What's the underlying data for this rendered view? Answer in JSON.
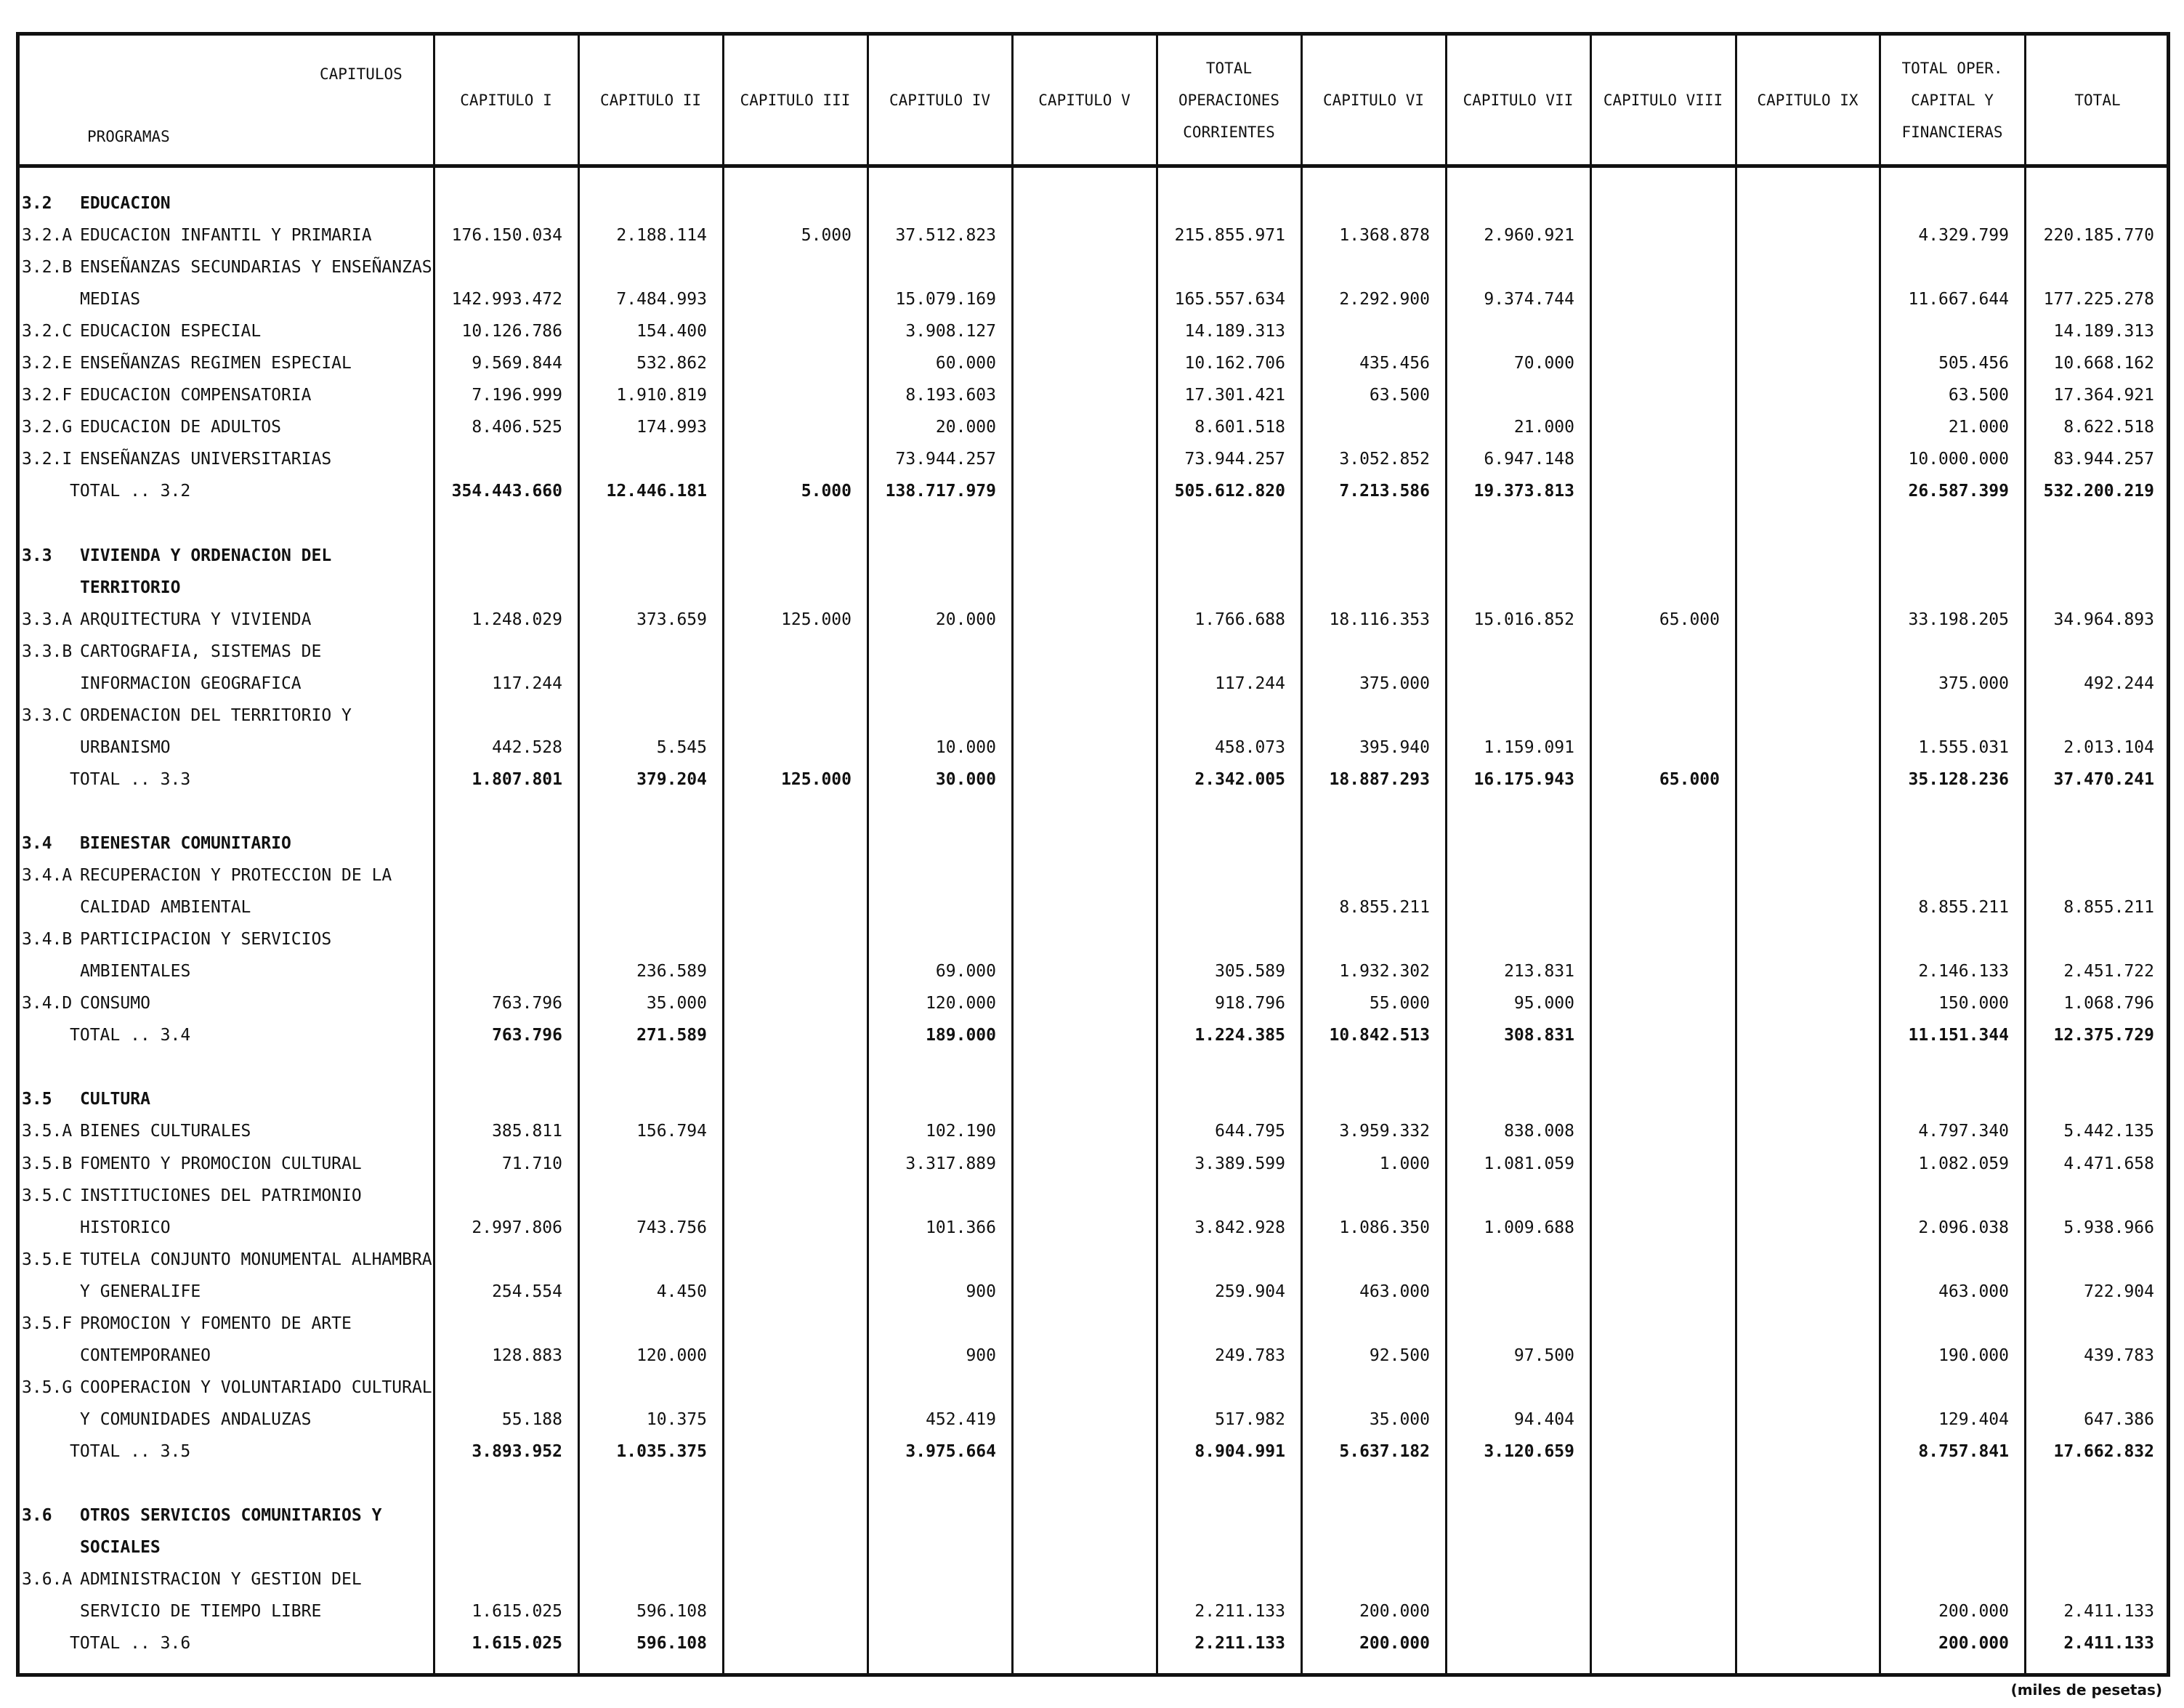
{
  "header": {
    "capitulos": "CAPITULOS",
    "programas": "PROGRAMAS",
    "columns": [
      {
        "lines": [
          "CAPITULO I"
        ]
      },
      {
        "lines": [
          "CAPITULO II"
        ]
      },
      {
        "lines": [
          "CAPITULO III"
        ]
      },
      {
        "lines": [
          "CAPITULO IV"
        ]
      },
      {
        "lines": [
          "CAPITULO V"
        ]
      },
      {
        "lines": [
          "TOTAL",
          "OPERACIONES",
          "CORRIENTES"
        ]
      },
      {
        "lines": [
          "CAPITULO VI"
        ]
      },
      {
        "lines": [
          "CAPITULO VII"
        ]
      },
      {
        "lines": [
          "CAPITULO VIII"
        ]
      },
      {
        "lines": [
          "CAPITULO IX"
        ]
      },
      {
        "lines": [
          "TOTAL OPER.",
          "CAPITAL Y",
          "FINANCIERAS"
        ]
      },
      {
        "lines": [
          "TOTAL"
        ]
      }
    ]
  },
  "rows": [
    {
      "code": "3.2",
      "label": "EDUCACION",
      "section": true,
      "v": [
        "",
        "",
        "",
        "",
        "",
        "",
        "",
        "",
        "",
        "",
        "",
        ""
      ]
    },
    {
      "code": "3.2.A",
      "label": "EDUCACION INFANTIL Y PRIMARIA",
      "v": [
        "176.150.034",
        "2.188.114",
        "5.000",
        "37.512.823",
        "",
        "215.855.971",
        "1.368.878",
        "2.960.921",
        "",
        "",
        "4.329.799",
        "220.185.770"
      ]
    },
    {
      "code": "3.2.B",
      "label": "ENSEÑANZAS SECUNDARIAS Y ENSEÑANZAS",
      "v": [
        "",
        "",
        "",
        "",
        "",
        "",
        "",
        "",
        "",
        "",
        "",
        ""
      ]
    },
    {
      "code": "",
      "label": "MEDIAS",
      "indent": true,
      "v": [
        "142.993.472",
        "7.484.993",
        "",
        "15.079.169",
        "",
        "165.557.634",
        "2.292.900",
        "9.374.744",
        "",
        "",
        "11.667.644",
        "177.225.278"
      ]
    },
    {
      "code": "3.2.C",
      "label": "EDUCACION ESPECIAL",
      "v": [
        "10.126.786",
        "154.400",
        "",
        "3.908.127",
        "",
        "14.189.313",
        "",
        "",
        "",
        "",
        "",
        "14.189.313"
      ]
    },
    {
      "code": "3.2.E",
      "label": "ENSEÑANZAS REGIMEN ESPECIAL",
      "v": [
        "9.569.844",
        "532.862",
        "",
        "60.000",
        "",
        "10.162.706",
        "435.456",
        "70.000",
        "",
        "",
        "505.456",
        "10.668.162"
      ]
    },
    {
      "code": "3.2.F",
      "label": "EDUCACION COMPENSATORIA",
      "v": [
        "7.196.999",
        "1.910.819",
        "",
        "8.193.603",
        "",
        "17.301.421",
        "63.500",
        "",
        "",
        "",
        "63.500",
        "17.364.921"
      ]
    },
    {
      "code": "3.2.G",
      "label": "EDUCACION DE ADULTOS",
      "v": [
        "8.406.525",
        "174.993",
        "",
        "20.000",
        "",
        "8.601.518",
        "",
        "21.000",
        "",
        "",
        "21.000",
        "8.622.518"
      ]
    },
    {
      "code": "3.2.I",
      "label": "ENSEÑANZAS UNIVERSITARIAS",
      "v": [
        "",
        "",
        "",
        "73.944.257",
        "",
        "73.944.257",
        "3.052.852",
        "6.947.148",
        "",
        "",
        "10.000.000",
        "83.944.257"
      ]
    },
    {
      "code": "",
      "label": "TOTAL .. 3.2",
      "total": true,
      "v": [
        "354.443.660",
        "12.446.181",
        "5.000",
        "138.717.979",
        "",
        "505.612.820",
        "7.213.586",
        "19.373.813",
        "",
        "",
        "26.587.399",
        "532.200.219"
      ]
    },
    {
      "blank": true
    },
    {
      "code": "3.3",
      "label": "VIVIENDA Y ORDENACION DEL",
      "section": true,
      "v": [
        "",
        "",
        "",
        "",
        "",
        "",
        "",
        "",
        "",
        "",
        "",
        ""
      ]
    },
    {
      "code": "",
      "label": "TERRITORIO",
      "indent": true,
      "section": true,
      "v": [
        "",
        "",
        "",
        "",
        "",
        "",
        "",
        "",
        "",
        "",
        "",
        ""
      ]
    },
    {
      "code": "3.3.A",
      "label": "ARQUITECTURA Y VIVIENDA",
      "v": [
        "1.248.029",
        "373.659",
        "125.000",
        "20.000",
        "",
        "1.766.688",
        "18.116.353",
        "15.016.852",
        "65.000",
        "",
        "33.198.205",
        "34.964.893"
      ]
    },
    {
      "code": "3.3.B",
      "label": "CARTOGRAFIA, SISTEMAS DE",
      "v": [
        "",
        "",
        "",
        "",
        "",
        "",
        "",
        "",
        "",
        "",
        "",
        ""
      ]
    },
    {
      "code": "",
      "label": "INFORMACION GEOGRAFICA",
      "indent": true,
      "v": [
        "117.244",
        "",
        "",
        "",
        "",
        "117.244",
        "375.000",
        "",
        "",
        "",
        "375.000",
        "492.244"
      ]
    },
    {
      "code": "3.3.C",
      "label": "ORDENACION DEL TERRITORIO Y",
      "v": [
        "",
        "",
        "",
        "",
        "",
        "",
        "",
        "",
        "",
        "",
        "",
        ""
      ]
    },
    {
      "code": "",
      "label": "URBANISMO",
      "indent": true,
      "v": [
        "442.528",
        "5.545",
        "",
        "10.000",
        "",
        "458.073",
        "395.940",
        "1.159.091",
        "",
        "",
        "1.555.031",
        "2.013.104"
      ]
    },
    {
      "code": "",
      "label": "TOTAL .. 3.3",
      "total": true,
      "v": [
        "1.807.801",
        "379.204",
        "125.000",
        "30.000",
        "",
        "2.342.005",
        "18.887.293",
        "16.175.943",
        "65.000",
        "",
        "35.128.236",
        "37.470.241"
      ]
    },
    {
      "blank": true
    },
    {
      "code": "3.4",
      "label": "BIENESTAR COMUNITARIO",
      "section": true,
      "v": [
        "",
        "",
        "",
        "",
        "",
        "",
        "",
        "",
        "",
        "",
        "",
        ""
      ]
    },
    {
      "code": "3.4.A",
      "label": "RECUPERACION Y PROTECCION DE LA",
      "v": [
        "",
        "",
        "",
        "",
        "",
        "",
        "",
        "",
        "",
        "",
        "",
        ""
      ]
    },
    {
      "code": "",
      "label": "CALIDAD AMBIENTAL",
      "indent": true,
      "v": [
        "",
        "",
        "",
        "",
        "",
        "",
        "8.855.211",
        "",
        "",
        "",
        "8.855.211",
        "8.855.211"
      ]
    },
    {
      "code": "3.4.B",
      "label": "PARTICIPACION Y SERVICIOS",
      "v": [
        "",
        "",
        "",
        "",
        "",
        "",
        "",
        "",
        "",
        "",
        "",
        ""
      ]
    },
    {
      "code": "",
      "label": "AMBIENTALES",
      "indent": true,
      "v": [
        "",
        "236.589",
        "",
        "69.000",
        "",
        "305.589",
        "1.932.302",
        "213.831",
        "",
        "",
        "2.146.133",
        "2.451.722"
      ]
    },
    {
      "code": "3.4.D",
      "label": "CONSUMO",
      "v": [
        "763.796",
        "35.000",
        "",
        "120.000",
        "",
        "918.796",
        "55.000",
        "95.000",
        "",
        "",
        "150.000",
        "1.068.796"
      ]
    },
    {
      "code": "",
      "label": "TOTAL .. 3.4",
      "total": true,
      "v": [
        "763.796",
        "271.589",
        "",
        "189.000",
        "",
        "1.224.385",
        "10.842.513",
        "308.831",
        "",
        "",
        "11.151.344",
        "12.375.729"
      ]
    },
    {
      "blank": true
    },
    {
      "code": "3.5",
      "label": "CULTURA",
      "section": true,
      "v": [
        "",
        "",
        "",
        "",
        "",
        "",
        "",
        "",
        "",
        "",
        "",
        ""
      ]
    },
    {
      "code": "3.5.A",
      "label": "BIENES CULTURALES",
      "v": [
        "385.811",
        "156.794",
        "",
        "102.190",
        "",
        "644.795",
        "3.959.332",
        "838.008",
        "",
        "",
        "4.797.340",
        "5.442.135"
      ]
    },
    {
      "code": "3.5.B",
      "label": "FOMENTO Y PROMOCION CULTURAL",
      "v": [
        "71.710",
        "",
        "",
        "3.317.889",
        "",
        "3.389.599",
        "1.000",
        "1.081.059",
        "",
        "",
        "1.082.059",
        "4.471.658"
      ]
    },
    {
      "code": "3.5.C",
      "label": "INSTITUCIONES DEL PATRIMONIO",
      "v": [
        "",
        "",
        "",
        "",
        "",
        "",
        "",
        "",
        "",
        "",
        "",
        ""
      ]
    },
    {
      "code": "",
      "label": "HISTORICO",
      "indent": true,
      "v": [
        "2.997.806",
        "743.756",
        "",
        "101.366",
        "",
        "3.842.928",
        "1.086.350",
        "1.009.688",
        "",
        "",
        "2.096.038",
        "5.938.966"
      ]
    },
    {
      "code": "3.5.E",
      "label": "TUTELA CONJUNTO MONUMENTAL ALHAMBRA",
      "v": [
        "",
        "",
        "",
        "",
        "",
        "",
        "",
        "",
        "",
        "",
        "",
        ""
      ]
    },
    {
      "code": "",
      "label": "Y GENERALIFE",
      "indent": true,
      "v": [
        "254.554",
        "4.450",
        "",
        "900",
        "",
        "259.904",
        "463.000",
        "",
        "",
        "",
        "463.000",
        "722.904"
      ]
    },
    {
      "code": "3.5.F",
      "label": "PROMOCION Y FOMENTO DE ARTE",
      "v": [
        "",
        "",
        "",
        "",
        "",
        "",
        "",
        "",
        "",
        "",
        "",
        ""
      ]
    },
    {
      "code": "",
      "label": "CONTEMPORANEO",
      "indent": true,
      "v": [
        "128.883",
        "120.000",
        "",
        "900",
        "",
        "249.783",
        "92.500",
        "97.500",
        "",
        "",
        "190.000",
        "439.783"
      ]
    },
    {
      "code": "3.5.G",
      "label": "COOPERACION Y VOLUNTARIADO CULTURAL",
      "v": [
        "",
        "",
        "",
        "",
        "",
        "",
        "",
        "",
        "",
        "",
        "",
        ""
      ]
    },
    {
      "code": "",
      "label": "Y COMUNIDADES ANDALUZAS",
      "indent": true,
      "v": [
        "55.188",
        "10.375",
        "",
        "452.419",
        "",
        "517.982",
        "35.000",
        "94.404",
        "",
        "",
        "129.404",
        "647.386"
      ]
    },
    {
      "code": "",
      "label": "TOTAL .. 3.5",
      "total": true,
      "v": [
        "3.893.952",
        "1.035.375",
        "",
        "3.975.664",
        "",
        "8.904.991",
        "5.637.182",
        "3.120.659",
        "",
        "",
        "8.757.841",
        "17.662.832"
      ]
    },
    {
      "blank": true
    },
    {
      "code": "3.6",
      "label": "OTROS SERVICIOS COMUNITARIOS Y",
      "section": true,
      "v": [
        "",
        "",
        "",
        "",
        "",
        "",
        "",
        "",
        "",
        "",
        "",
        ""
      ]
    },
    {
      "code": "",
      "label": "SOCIALES",
      "indent": true,
      "section": true,
      "v": [
        "",
        "",
        "",
        "",
        "",
        "",
        "",
        "",
        "",
        "",
        "",
        ""
      ]
    },
    {
      "code": "3.6.A",
      "label": "ADMINISTRACION Y GESTION DEL",
      "v": [
        "",
        "",
        "",
        "",
        "",
        "",
        "",
        "",
        "",
        "",
        "",
        ""
      ]
    },
    {
      "code": "",
      "label": "SERVICIO DE TIEMPO LIBRE",
      "indent": true,
      "v": [
        "1.615.025",
        "596.108",
        "",
        "",
        "",
        "2.211.133",
        "200.000",
        "",
        "",
        "",
        "200.000",
        "2.411.133"
      ]
    },
    {
      "code": "",
      "label": "TOTAL .. 3.6",
      "total": true,
      "v": [
        "1.615.025",
        "596.108",
        "",
        "",
        "",
        "2.211.133",
        "200.000",
        "",
        "",
        "",
        "200.000",
        "2.411.133"
      ]
    }
  ],
  "footer": "(miles de pesetas)"
}
